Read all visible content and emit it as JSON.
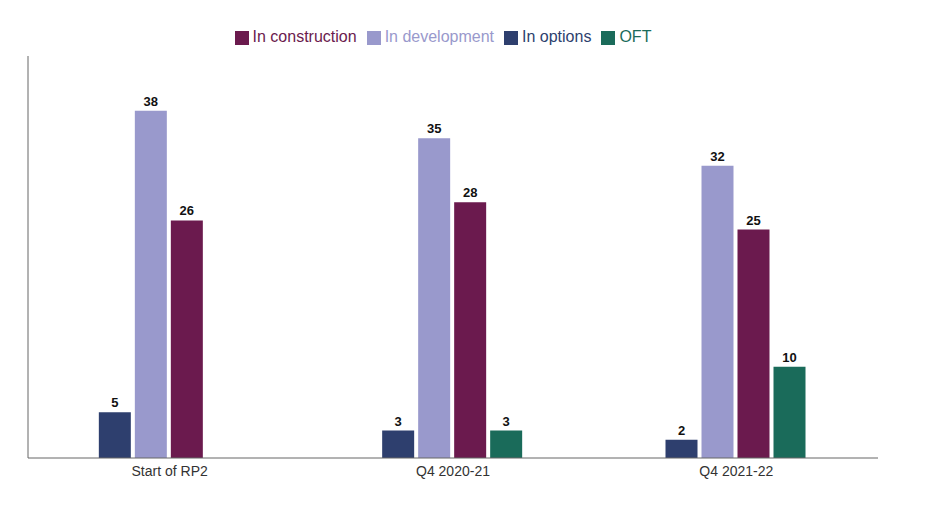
{
  "chart_data": {
    "type": "bar",
    "categories": [
      "Start of RP2",
      "Q4 2020-21",
      "Q4 2021-22"
    ],
    "series": [
      {
        "name": "In options",
        "color": "#2e3f6e",
        "values": [
          5,
          3,
          2
        ]
      },
      {
        "name": "In development",
        "color": "#9999cc",
        "values": [
          38,
          35,
          32
        ]
      },
      {
        "name": "In construction",
        "color": "#6b1a4e",
        "values": [
          26,
          28,
          25
        ]
      },
      {
        "name": "OFT",
        "color": "#1a6b5a",
        "values": [
          0,
          3,
          10
        ]
      }
    ],
    "ylim": [
      0,
      44
    ],
    "data_labels": true,
    "tick_labels": "x",
    "legend": "top",
    "grid": false
  }
}
